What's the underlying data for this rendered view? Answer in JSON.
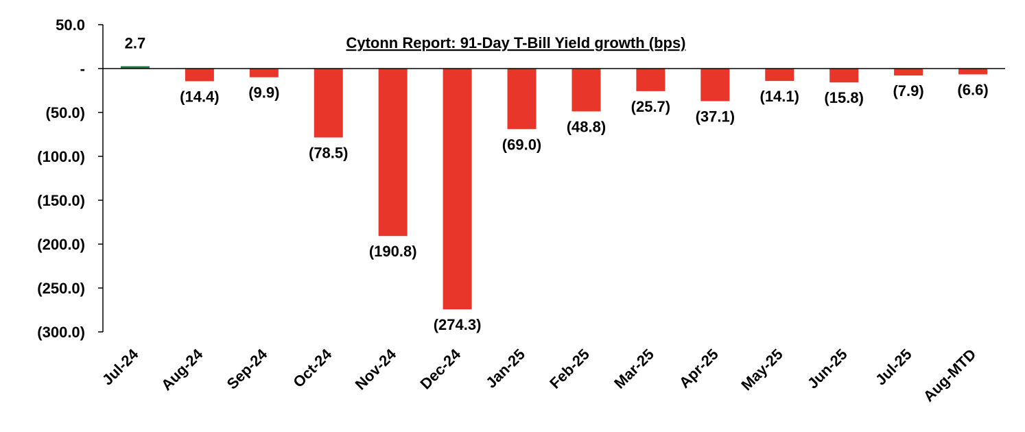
{
  "chart_data": {
    "type": "bar",
    "title": "Cytonn Report:  91-Day T-Bill Yield growth (bps)",
    "xlabel": "",
    "ylabel": "",
    "ylim": [
      -300,
      50
    ],
    "yticks": [
      50,
      0,
      -50,
      -100,
      -150,
      -200,
      -250,
      -300
    ],
    "ytick_labels": [
      "50.0",
      "-",
      "(50.0)",
      "(100.0)",
      "(150.0)",
      "(200.0)",
      "(250.0)",
      "(300.0)"
    ],
    "categories": [
      "Jul-24",
      "Aug-24",
      "Sep-24",
      "Oct-24",
      "Nov-24",
      "Dec-24",
      "Jan-25",
      "Feb-25",
      "Mar-25",
      "Apr-25",
      "May-25",
      "Jun-25",
      "Jul-25",
      "Aug-MTD"
    ],
    "values": [
      2.7,
      -14.4,
      -9.9,
      -78.5,
      -190.8,
      -274.3,
      -69.0,
      -48.8,
      -25.7,
      -37.1,
      -14.1,
      -15.8,
      -7.9,
      -6.6
    ],
    "value_labels": [
      "2.7",
      "(14.4)",
      "(9.9)",
      "(78.5)",
      "(190.8)",
      "(274.3)",
      "(69.0)",
      "(48.8)",
      "(25.7)",
      "(37.1)",
      "(14.1)",
      "(15.8)",
      "(7.9)",
      "(6.6)"
    ],
    "grid": false,
    "legend": "none",
    "colors": {
      "positive": "#1f7a4d",
      "negative": "#e8372a"
    }
  }
}
